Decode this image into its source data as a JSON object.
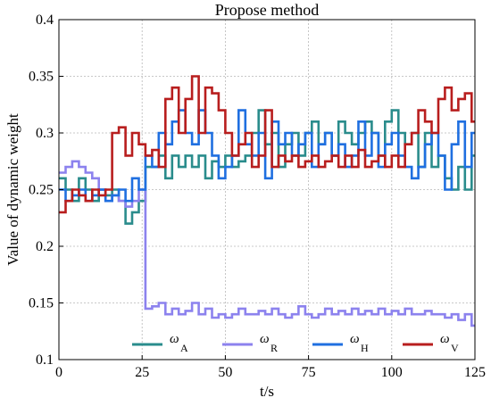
{
  "chart_data": {
    "type": "line",
    "title": "Propose method",
    "xlabel": "t/s",
    "ylabel": "Value of dynamic weight",
    "xlim": [
      0,
      125
    ],
    "ylim": [
      0.1,
      0.4
    ],
    "xticks": [
      0,
      25,
      50,
      75,
      100,
      125
    ],
    "yticks": [
      0.1,
      0.15,
      0.2,
      0.25,
      0.3,
      0.35,
      0.4
    ],
    "xtick_labels": [
      "0",
      "25",
      "50",
      "75",
      "100",
      "125"
    ],
    "ytick_labels": [
      "0.1",
      "0.15",
      "0.2",
      "0.25",
      "0.3",
      "0.35",
      "0.4"
    ],
    "grid": true,
    "legend_position": "bottom-center",
    "step": true,
    "x": [
      0,
      2,
      4,
      6,
      8,
      10,
      12,
      14,
      16,
      18,
      20,
      22,
      24,
      26,
      28,
      30,
      32,
      34,
      36,
      38,
      40,
      42,
      44,
      46,
      48,
      50,
      52,
      54,
      56,
      58,
      60,
      62,
      64,
      66,
      68,
      70,
      72,
      74,
      76,
      78,
      80,
      82,
      84,
      86,
      88,
      90,
      92,
      94,
      96,
      98,
      100,
      102,
      104,
      106,
      108,
      110,
      112,
      114,
      116,
      118,
      120,
      122,
      124
    ],
    "series": [
      {
        "name": "ω",
        "subscript": "A",
        "color": "#2a8c8c",
        "values": [
          0.26,
          0.25,
          0.24,
          0.26,
          0.25,
          0.24,
          0.25,
          0.245,
          0.25,
          0.24,
          0.22,
          0.23,
          0.24,
          0.27,
          0.27,
          0.28,
          0.26,
          0.28,
          0.27,
          0.28,
          0.27,
          0.28,
          0.26,
          0.275,
          0.27,
          0.28,
          0.27,
          0.275,
          0.28,
          0.3,
          0.32,
          0.29,
          0.3,
          0.27,
          0.29,
          0.3,
          0.28,
          0.3,
          0.31,
          0.29,
          0.3,
          0.28,
          0.31,
          0.3,
          0.29,
          0.3,
          0.31,
          0.3,
          0.28,
          0.31,
          0.32,
          0.3,
          0.29,
          0.3,
          0.27,
          0.3,
          0.27,
          0.28,
          0.26,
          0.25,
          0.27,
          0.25,
          0.28
        ]
      },
      {
        "name": "ω",
        "subscript": "R",
        "color": "#8c82ee",
        "values": [
          0.265,
          0.27,
          0.275,
          0.27,
          0.265,
          0.26,
          0.25,
          0.24,
          0.245,
          0.24,
          0.235,
          0.24,
          0.25,
          0.145,
          0.147,
          0.15,
          0.14,
          0.145,
          0.14,
          0.143,
          0.15,
          0.14,
          0.145,
          0.137,
          0.14,
          0.137,
          0.14,
          0.145,
          0.14,
          0.14,
          0.143,
          0.14,
          0.145,
          0.14,
          0.137,
          0.14,
          0.147,
          0.14,
          0.137,
          0.14,
          0.145,
          0.14,
          0.143,
          0.14,
          0.145,
          0.14,
          0.143,
          0.14,
          0.145,
          0.14,
          0.143,
          0.14,
          0.145,
          0.14,
          0.14,
          0.143,
          0.14,
          0.14,
          0.137,
          0.14,
          0.135,
          0.14,
          0.13
        ]
      },
      {
        "name": "ω",
        "subscript": "H",
        "color": "#1f6fe0",
        "values": [
          0.25,
          0.24,
          0.245,
          0.25,
          0.24,
          0.245,
          0.25,
          0.24,
          0.245,
          0.25,
          0.24,
          0.26,
          0.25,
          0.28,
          0.27,
          0.3,
          0.29,
          0.31,
          0.32,
          0.3,
          0.29,
          0.32,
          0.3,
          0.28,
          0.26,
          0.27,
          0.28,
          0.32,
          0.29,
          0.28,
          0.3,
          0.26,
          0.31,
          0.29,
          0.3,
          0.28,
          0.29,
          0.3,
          0.27,
          0.29,
          0.3,
          0.28,
          0.29,
          0.27,
          0.28,
          0.31,
          0.28,
          0.3,
          0.27,
          0.29,
          0.3,
          0.28,
          0.27,
          0.26,
          0.27,
          0.29,
          0.3,
          0.28,
          0.25,
          0.29,
          0.31,
          0.27,
          0.3
        ]
      },
      {
        "name": "ω",
        "subscript": "V",
        "color": "#b81e1e",
        "values": [
          0.23,
          0.24,
          0.25,
          0.245,
          0.24,
          0.25,
          0.245,
          0.25,
          0.3,
          0.305,
          0.28,
          0.3,
          0.29,
          0.28,
          0.285,
          0.27,
          0.33,
          0.34,
          0.3,
          0.33,
          0.35,
          0.3,
          0.34,
          0.335,
          0.32,
          0.3,
          0.28,
          0.29,
          0.3,
          0.27,
          0.28,
          0.32,
          0.27,
          0.28,
          0.275,
          0.28,
          0.27,
          0.275,
          0.28,
          0.27,
          0.275,
          0.28,
          0.27,
          0.28,
          0.27,
          0.285,
          0.27,
          0.275,
          0.28,
          0.27,
          0.28,
          0.27,
          0.29,
          0.3,
          0.32,
          0.31,
          0.3,
          0.33,
          0.34,
          0.32,
          0.33,
          0.335,
          0.31
        ]
      }
    ]
  }
}
